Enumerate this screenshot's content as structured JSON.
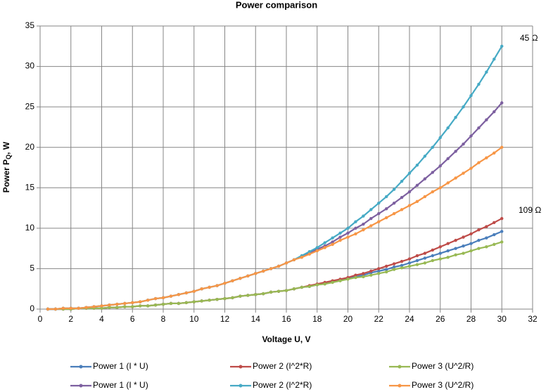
{
  "chart_data": {
    "type": "line",
    "title": "Power comparison",
    "x_label": "Voltage U, V",
    "y_label": {
      "text": "Power P",
      "subscript": "Q",
      "suffix": ", W"
    },
    "annotations": [
      "45 Ω",
      "109 Ω"
    ],
    "x": [
      0.5,
      1,
      1.5,
      2,
      2.5,
      3,
      3.5,
      4,
      4.5,
      5,
      5.5,
      6,
      6.5,
      7,
      7.5,
      8,
      8.5,
      9,
      9.5,
      10,
      10.5,
      11,
      11.5,
      12,
      12.5,
      13,
      13.5,
      14,
      14.5,
      15,
      15.5,
      16,
      16.5,
      17,
      17.5,
      18,
      18.5,
      19,
      19.5,
      20,
      20.5,
      21,
      21.5,
      22,
      22.5,
      23,
      23.5,
      24,
      24.5,
      25,
      25.5,
      26,
      26.5,
      27,
      27.5,
      28,
      28.5,
      29,
      29.5,
      30
    ],
    "series": [
      {
        "name": "Power 1 (I * U)",
        "color": "#4a7ebb",
        "values": [
          0,
          0,
          0,
          0,
          0.1,
          0.1,
          0.1,
          0.1,
          0.2,
          0.2,
          0.3,
          0.3,
          0.4,
          0.4,
          0.5,
          0.6,
          0.7,
          0.7,
          0.8,
          0.9,
          1.0,
          1.1,
          1.2,
          1.3,
          1.4,
          1.6,
          1.7,
          1.8,
          1.9,
          2.1,
          2.2,
          2.3,
          2.5,
          2.7,
          2.8,
          3.0,
          3.2,
          3.4,
          3.6,
          3.8,
          4.0,
          4.2,
          4.5,
          4.7,
          4.9,
          5.2,
          5.4,
          5.7,
          6.0,
          6.3,
          6.6,
          6.9,
          7.2,
          7.5,
          7.8,
          8.1,
          8.5,
          8.8,
          9.2,
          9.6
        ]
      },
      {
        "name": "Power 2 (I^2*R)",
        "color": "#be4b48",
        "values": [
          0,
          0,
          0,
          0,
          0.1,
          0.1,
          0.1,
          0.1,
          0.2,
          0.2,
          0.3,
          0.3,
          0.4,
          0.4,
          0.5,
          0.6,
          0.7,
          0.7,
          0.8,
          0.9,
          1.0,
          1.1,
          1.2,
          1.3,
          1.4,
          1.6,
          1.7,
          1.8,
          1.9,
          2.1,
          2.2,
          2.3,
          2.5,
          2.7,
          2.9,
          3.1,
          3.3,
          3.5,
          3.7,
          3.9,
          4.2,
          4.4,
          4.7,
          5.0,
          5.3,
          5.6,
          5.9,
          6.2,
          6.6,
          6.9,
          7.3,
          7.7,
          8.1,
          8.5,
          8.9,
          9.3,
          9.8,
          10.2,
          10.7,
          11.2
        ]
      },
      {
        "name": "Power 3 (U^2/R)",
        "color": "#98b954",
        "values": [
          0,
          0,
          0,
          0,
          0.1,
          0.1,
          0.1,
          0.1,
          0.2,
          0.2,
          0.3,
          0.3,
          0.4,
          0.4,
          0.5,
          0.6,
          0.7,
          0.7,
          0.8,
          0.9,
          1.0,
          1.1,
          1.2,
          1.3,
          1.4,
          1.6,
          1.7,
          1.8,
          1.9,
          2.1,
          2.2,
          2.3,
          2.5,
          2.7,
          2.8,
          3.0,
          3.1,
          3.3,
          3.5,
          3.7,
          3.9,
          4.0,
          4.2,
          4.4,
          4.6,
          4.9,
          5.1,
          5.3,
          5.5,
          5.7,
          6.0,
          6.2,
          6.4,
          6.7,
          6.9,
          7.2,
          7.5,
          7.7,
          8.0,
          8.3
        ]
      },
      {
        "name": "Power 1 (I * U)",
        "color": "#7d60a0",
        "values": [
          0,
          0,
          0.1,
          0.1,
          0.1,
          0.2,
          0.3,
          0.4,
          0.5,
          0.6,
          0.7,
          0.8,
          0.9,
          1.1,
          1.3,
          1.4,
          1.6,
          1.8,
          2.0,
          2.2,
          2.5,
          2.7,
          2.9,
          3.2,
          3.5,
          3.8,
          4.1,
          4.4,
          4.7,
          5.0,
          5.3,
          5.7,
          6.1,
          6.5,
          6.9,
          7.4,
          7.8,
          8.3,
          8.9,
          9.4,
          10.0,
          10.5,
          11.2,
          11.8,
          12.4,
          13.1,
          13.8,
          14.5,
          15.3,
          16.1,
          16.9,
          17.7,
          18.6,
          19.5,
          20.4,
          21.4,
          22.4,
          23.4,
          24.4,
          25.5
        ]
      },
      {
        "name": "Power 2 (I^2*R)",
        "color": "#46aac5",
        "values": [
          0,
          0,
          0.1,
          0.1,
          0.1,
          0.2,
          0.3,
          0.4,
          0.5,
          0.6,
          0.7,
          0.8,
          0.9,
          1.1,
          1.3,
          1.4,
          1.6,
          1.8,
          2.0,
          2.2,
          2.5,
          2.7,
          2.9,
          3.2,
          3.5,
          3.8,
          4.1,
          4.4,
          4.7,
          5.0,
          5.3,
          5.7,
          6.1,
          6.6,
          7.1,
          7.6,
          8.2,
          8.8,
          9.4,
          10.0,
          10.8,
          11.5,
          12.3,
          13.1,
          13.9,
          14.8,
          15.8,
          16.8,
          17.8,
          18.9,
          20.0,
          21.2,
          22.4,
          23.7,
          25.0,
          26.4,
          27.8,
          29.3,
          30.9,
          32.5
        ]
      },
      {
        "name": "Power 3 (U^2/R)",
        "color": "#f79646",
        "values": [
          0,
          0,
          0.1,
          0.1,
          0.1,
          0.2,
          0.3,
          0.4,
          0.5,
          0.6,
          0.7,
          0.8,
          0.9,
          1.1,
          1.3,
          1.4,
          1.6,
          1.8,
          2.0,
          2.2,
          2.5,
          2.7,
          2.9,
          3.2,
          3.5,
          3.8,
          4.1,
          4.4,
          4.7,
          5.0,
          5.3,
          5.7,
          6.1,
          6.4,
          6.8,
          7.2,
          7.6,
          8.0,
          8.5,
          8.9,
          9.3,
          9.8,
          10.3,
          10.8,
          11.3,
          11.8,
          12.3,
          12.8,
          13.3,
          13.9,
          14.5,
          15.0,
          15.6,
          16.2,
          16.8,
          17.4,
          18.1,
          18.7,
          19.3,
          20.0
        ]
      }
    ],
    "xlim": [
      0,
      32
    ],
    "xticks": [
      0,
      2,
      4,
      6,
      8,
      10,
      12,
      14,
      16,
      18,
      20,
      22,
      24,
      26,
      28,
      30,
      32
    ],
    "ylim": [
      0,
      35
    ],
    "yticks": [
      0,
      5,
      10,
      15,
      20,
      25,
      30,
      35
    ],
    "grid": true
  }
}
